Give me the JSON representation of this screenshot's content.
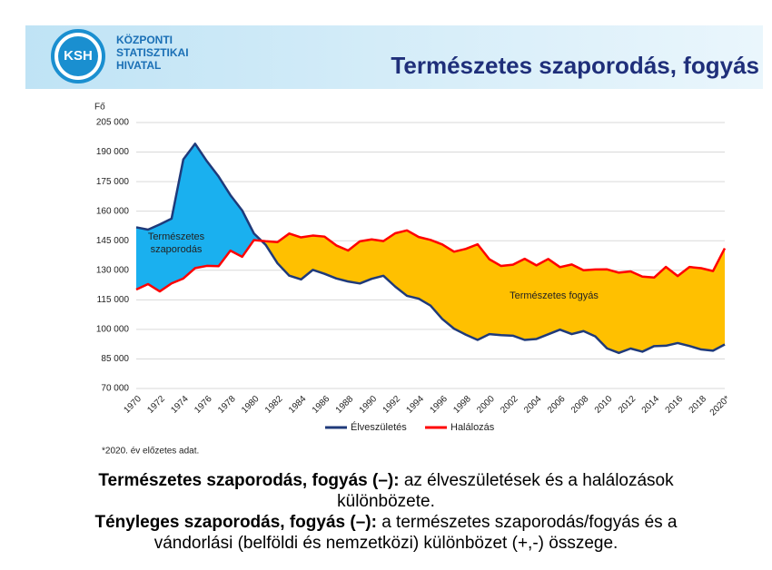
{
  "header": {
    "logo": "KSH",
    "org_lines": [
      "KÖZPONTI",
      "STATISZTIKAI",
      "HIVATAL"
    ]
  },
  "chart_data": {
    "type": "area-line",
    "title": "Természetes szaporodás, fogyás",
    "y_label": "Fő",
    "categories": [
      "1970",
      null,
      "1972",
      null,
      "1974",
      null,
      "1976",
      null,
      "1978",
      null,
      "1980",
      null,
      "1982",
      null,
      "1984",
      null,
      "1986",
      null,
      "1988",
      null,
      "1990",
      null,
      "1992",
      null,
      "1994",
      null,
      "1996",
      null,
      "1998",
      null,
      "2000",
      null,
      "2002",
      null,
      "2004",
      null,
      "2006",
      null,
      "2008",
      null,
      "2010",
      null,
      "2012",
      null,
      "2014",
      null,
      "2016",
      null,
      "2018",
      null,
      "2020*"
    ],
    "series": [
      {
        "name": "Élveszületés",
        "color": "#1f3a7a",
        "values": [
          151819,
          150640,
          153265,
          156224,
          186288,
          194240,
          185405,
          177574,
          168160,
          160364,
          148673,
          142890,
          133559,
          127258,
          125359,
          130200,
          128204,
          125840,
          124296,
          123304,
          125679,
          127207,
          121724,
          117033,
          115598,
          112054,
          105272,
          100350,
          97301,
          94645,
          97597,
          97047,
          96804,
          94647,
          95137,
          97496,
          99871,
          97613,
          99149,
          96442,
          90335,
          88049,
          90269,
          88689,
          91510,
          91690,
          93063,
          91577,
          89807,
          89193,
          92338
        ]
      },
      {
        "name": "Halálozás",
        "color": "#ff0000",
        "values": [
          120197,
          123009,
          119280,
          123325,
          125816,
          131102,
          132240,
          132111,
          139984,
          136829,
          145355,
          144757,
          144318,
          148643,
          146709,
          147614,
          147089,
          142601,
          140042,
          144695,
          145660,
          144813,
          148781,
          150244,
          146889,
          145431,
          143130,
          139434,
          140870,
          143210,
          135601,
          132183,
          132833,
          135823,
          132492,
          135732,
          131603,
          132938,
          130027,
          130414,
          130456,
          128795,
          129440,
          126778,
          126308,
          131697,
          127053,
          131674,
          131045,
          129603,
          141144
        ]
      }
    ],
    "fill_colors": {
      "natural_increase": "#1ab0ef",
      "natural_decrease": "#ffc000"
    },
    "annotations": [
      [
        "Természetes",
        "szaporodás"
      ],
      [
        "Természetes fogyás"
      ]
    ],
    "ylim": [
      70000,
      205000
    ],
    "yticks": [
      {
        "value": 70000,
        "label": "70 000"
      },
      {
        "value": 85000,
        "label": "85 000"
      },
      {
        "value": 100000,
        "label": "100 000"
      },
      {
        "value": 115000,
        "label": "115 000"
      },
      {
        "value": 130000,
        "label": "130 000"
      },
      {
        "value": 145000,
        "label": "145 000"
      },
      {
        "value": 160000,
        "label": "160 000"
      },
      {
        "value": 175000,
        "label": "175 000"
      },
      {
        "value": 190000,
        "label": "190 000"
      },
      {
        "value": 205000,
        "label": "205 000"
      }
    ],
    "grid": true,
    "legend": "bottom"
  },
  "footnote": "*2020. év előzetes adat.",
  "definitions": [
    {
      "term": "Természetes szaporodás, fogyás (–):",
      "text": " az élveszületések és a halálozások különbözete."
    },
    {
      "term": "Tényleges szaporodás, fogyás (–):",
      "text": " a természetes szaporodás/fogyás és a vándorlási (belföldi és nemzetközi) különbözet (+,-) összege."
    }
  ]
}
